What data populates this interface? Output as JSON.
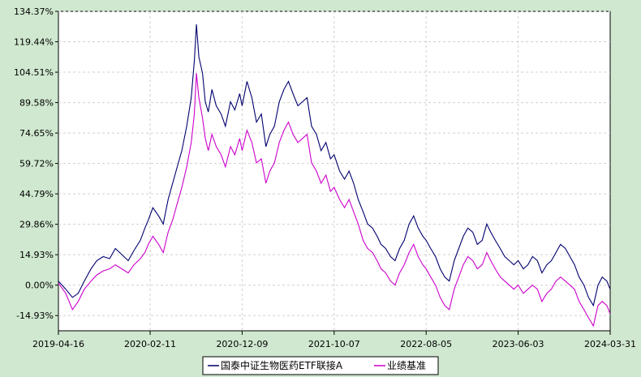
{
  "chart_data": {
    "type": "line",
    "title": "",
    "xlabel": "",
    "ylabel": "",
    "y_unit": "%",
    "ylim": [
      -22.4,
      134.37
    ],
    "y_ticks": [
      "134.37%",
      "119.44%",
      "104.51%",
      "89.58%",
      "74.65%",
      "59.72%",
      "44.79%",
      "29.86%",
      "14.93%",
      "0.00%",
      "-14.93%"
    ],
    "y_tick_values": [
      134.37,
      119.44,
      104.51,
      89.58,
      74.65,
      59.72,
      44.79,
      29.86,
      14.93,
      0.0,
      -14.93
    ],
    "x_ticks": [
      "2019-04-16",
      "2020-02-11",
      "2020-12-09",
      "2021-10-07",
      "2022-08-05",
      "2023-06-03",
      "2024-03-31"
    ],
    "xlim": [
      "2019-04-16",
      "2024-03-31"
    ],
    "grid": true,
    "legend_position": "bottom-center",
    "colors": {
      "background": "#cfe8cf",
      "plot_bg": "#ffffff",
      "grid": "#d0d0d0"
    },
    "series": [
      {
        "name": "国泰中证生物医药ETF联接A",
        "color": "#00006e",
        "points": [
          [
            "2019-04-16",
            2
          ],
          [
            "2019-05-10",
            -2
          ],
          [
            "2019-06-01",
            -6
          ],
          [
            "2019-06-20",
            -4
          ],
          [
            "2019-07-10",
            2
          ],
          [
            "2019-08-01",
            8
          ],
          [
            "2019-08-20",
            12
          ],
          [
            "2019-09-10",
            14
          ],
          [
            "2019-10-01",
            13
          ],
          [
            "2019-10-20",
            18
          ],
          [
            "2019-11-10",
            15
          ],
          [
            "2019-12-01",
            12
          ],
          [
            "2019-12-20",
            17
          ],
          [
            "2020-01-10",
            22
          ],
          [
            "2020-01-25",
            28
          ],
          [
            "2020-02-05",
            32
          ],
          [
            "2020-02-20",
            38
          ],
          [
            "2020-03-10",
            34
          ],
          [
            "2020-03-25",
            30
          ],
          [
            "2020-04-10",
            42
          ],
          [
            "2020-04-25",
            50
          ],
          [
            "2020-05-10",
            58
          ],
          [
            "2020-05-25",
            66
          ],
          [
            "2020-06-10",
            78
          ],
          [
            "2020-06-25",
            92
          ],
          [
            "2020-07-05",
            110
          ],
          [
            "2020-07-12",
            128
          ],
          [
            "2020-07-20",
            112
          ],
          [
            "2020-08-01",
            104
          ],
          [
            "2020-08-10",
            90
          ],
          [
            "2020-08-20",
            85
          ],
          [
            "2020-09-01",
            96
          ],
          [
            "2020-09-15",
            88
          ],
          [
            "2020-10-01",
            84
          ],
          [
            "2020-10-15",
            78
          ],
          [
            "2020-11-01",
            90
          ],
          [
            "2020-11-15",
            86
          ],
          [
            "2020-12-01",
            94
          ],
          [
            "2020-12-09",
            88
          ],
          [
            "2020-12-25",
            100
          ],
          [
            "2021-01-10",
            92
          ],
          [
            "2021-01-25",
            80
          ],
          [
            "2021-02-10",
            84
          ],
          [
            "2021-02-25",
            68
          ],
          [
            "2021-03-10",
            74
          ],
          [
            "2021-03-25",
            78
          ],
          [
            "2021-04-10",
            90
          ],
          [
            "2021-04-25",
            96
          ],
          [
            "2021-05-10",
            100
          ],
          [
            "2021-05-25",
            94
          ],
          [
            "2021-06-10",
            88
          ],
          [
            "2021-06-25",
            90
          ],
          [
            "2021-07-10",
            92
          ],
          [
            "2021-07-25",
            78
          ],
          [
            "2021-08-10",
            74
          ],
          [
            "2021-08-25",
            66
          ],
          [
            "2021-09-10",
            70
          ],
          [
            "2021-09-25",
            62
          ],
          [
            "2021-10-07",
            64
          ],
          [
            "2021-10-25",
            56
          ],
          [
            "2021-11-10",
            52
          ],
          [
            "2021-11-25",
            56
          ],
          [
            "2021-12-10",
            50
          ],
          [
            "2021-12-25",
            42
          ],
          [
            "2022-01-10",
            36
          ],
          [
            "2022-01-25",
            30
          ],
          [
            "2022-02-10",
            28
          ],
          [
            "2022-02-25",
            24
          ],
          [
            "2022-03-10",
            20
          ],
          [
            "2022-03-25",
            18
          ],
          [
            "2022-04-10",
            14
          ],
          [
            "2022-04-25",
            12
          ],
          [
            "2022-05-10",
            18
          ],
          [
            "2022-05-25",
            22
          ],
          [
            "2022-06-10",
            30
          ],
          [
            "2022-06-25",
            34
          ],
          [
            "2022-07-10",
            28
          ],
          [
            "2022-07-25",
            24
          ],
          [
            "2022-08-05",
            22
          ],
          [
            "2022-08-20",
            18
          ],
          [
            "2022-09-05",
            14
          ],
          [
            "2022-09-20",
            8
          ],
          [
            "2022-10-05",
            4
          ],
          [
            "2022-10-20",
            2
          ],
          [
            "2022-11-05",
            12
          ],
          [
            "2022-11-20",
            18
          ],
          [
            "2022-12-05",
            24
          ],
          [
            "2022-12-20",
            28
          ],
          [
            "2023-01-05",
            26
          ],
          [
            "2023-01-20",
            20
          ],
          [
            "2023-02-05",
            22
          ],
          [
            "2023-02-20",
            30
          ],
          [
            "2023-03-05",
            26
          ],
          [
            "2023-03-20",
            22
          ],
          [
            "2023-04-05",
            18
          ],
          [
            "2023-04-20",
            14
          ],
          [
            "2023-05-05",
            12
          ],
          [
            "2023-05-20",
            10
          ],
          [
            "2023-06-03",
            12
          ],
          [
            "2023-06-20",
            8
          ],
          [
            "2023-07-05",
            10
          ],
          [
            "2023-07-20",
            14
          ],
          [
            "2023-08-05",
            12
          ],
          [
            "2023-08-20",
            6
          ],
          [
            "2023-09-05",
            10
          ],
          [
            "2023-09-20",
            12
          ],
          [
            "2023-10-05",
            16
          ],
          [
            "2023-10-20",
            20
          ],
          [
            "2023-11-05",
            18
          ],
          [
            "2023-11-20",
            14
          ],
          [
            "2023-12-05",
            10
          ],
          [
            "2023-12-20",
            4
          ],
          [
            "2024-01-05",
            0
          ],
          [
            "2024-01-20",
            -6
          ],
          [
            "2024-02-05",
            -10
          ],
          [
            "2024-02-20",
            0
          ],
          [
            "2024-03-05",
            4
          ],
          [
            "2024-03-20",
            2
          ],
          [
            "2024-03-31",
            -2
          ]
        ]
      },
      {
        "name": "业绩基准",
        "color": "#cc00cc",
        "points": [
          [
            "2019-04-16",
            1
          ],
          [
            "2019-05-10",
            -4
          ],
          [
            "2019-06-01",
            -12
          ],
          [
            "2019-06-20",
            -8
          ],
          [
            "2019-07-10",
            -2
          ],
          [
            "2019-08-01",
            2
          ],
          [
            "2019-08-20",
            5
          ],
          [
            "2019-09-10",
            7
          ],
          [
            "2019-10-01",
            8
          ],
          [
            "2019-10-20",
            10
          ],
          [
            "2019-11-10",
            8
          ],
          [
            "2019-12-01",
            6
          ],
          [
            "2019-12-20",
            10
          ],
          [
            "2020-01-10",
            13
          ],
          [
            "2020-01-25",
            16
          ],
          [
            "2020-02-05",
            20
          ],
          [
            "2020-02-20",
            24
          ],
          [
            "2020-03-10",
            20
          ],
          [
            "2020-03-25",
            16
          ],
          [
            "2020-04-10",
            26
          ],
          [
            "2020-04-25",
            32
          ],
          [
            "2020-05-10",
            40
          ],
          [
            "2020-05-25",
            48
          ],
          [
            "2020-06-10",
            58
          ],
          [
            "2020-06-25",
            70
          ],
          [
            "2020-07-05",
            84
          ],
          [
            "2020-07-12",
            104
          ],
          [
            "2020-07-20",
            92
          ],
          [
            "2020-08-01",
            82
          ],
          [
            "2020-08-10",
            72
          ],
          [
            "2020-08-20",
            66
          ],
          [
            "2020-09-01",
            74
          ],
          [
            "2020-09-15",
            68
          ],
          [
            "2020-10-01",
            64
          ],
          [
            "2020-10-15",
            58
          ],
          [
            "2020-11-01",
            68
          ],
          [
            "2020-11-15",
            64
          ],
          [
            "2020-12-01",
            72
          ],
          [
            "2020-12-09",
            66
          ],
          [
            "2020-12-25",
            76
          ],
          [
            "2021-01-10",
            70
          ],
          [
            "2021-01-25",
            60
          ],
          [
            "2021-02-10",
            62
          ],
          [
            "2021-02-25",
            50
          ],
          [
            "2021-03-10",
            56
          ],
          [
            "2021-03-25",
            60
          ],
          [
            "2021-04-10",
            70
          ],
          [
            "2021-04-25",
            76
          ],
          [
            "2021-05-10",
            80
          ],
          [
            "2021-05-25",
            74
          ],
          [
            "2021-06-10",
            70
          ],
          [
            "2021-06-25",
            72
          ],
          [
            "2021-07-10",
            74
          ],
          [
            "2021-07-25",
            60
          ],
          [
            "2021-08-10",
            56
          ],
          [
            "2021-08-25",
            50
          ],
          [
            "2021-09-10",
            54
          ],
          [
            "2021-09-25",
            46
          ],
          [
            "2021-10-07",
            48
          ],
          [
            "2021-10-25",
            42
          ],
          [
            "2021-11-10",
            38
          ],
          [
            "2021-11-25",
            42
          ],
          [
            "2021-12-10",
            36
          ],
          [
            "2021-12-25",
            30
          ],
          [
            "2022-01-10",
            22
          ],
          [
            "2022-01-25",
            18
          ],
          [
            "2022-02-10",
            16
          ],
          [
            "2022-02-25",
            12
          ],
          [
            "2022-03-10",
            8
          ],
          [
            "2022-03-25",
            6
          ],
          [
            "2022-04-10",
            2
          ],
          [
            "2022-04-25",
            0
          ],
          [
            "2022-05-10",
            6
          ],
          [
            "2022-05-25",
            10
          ],
          [
            "2022-06-10",
            16
          ],
          [
            "2022-06-25",
            20
          ],
          [
            "2022-07-10",
            14
          ],
          [
            "2022-07-25",
            10
          ],
          [
            "2022-08-05",
            8
          ],
          [
            "2022-08-20",
            4
          ],
          [
            "2022-09-05",
            0
          ],
          [
            "2022-09-20",
            -6
          ],
          [
            "2022-10-05",
            -10
          ],
          [
            "2022-10-20",
            -12
          ],
          [
            "2022-11-05",
            -2
          ],
          [
            "2022-11-20",
            4
          ],
          [
            "2022-12-05",
            10
          ],
          [
            "2022-12-20",
            14
          ],
          [
            "2023-01-05",
            12
          ],
          [
            "2023-01-20",
            8
          ],
          [
            "2023-02-05",
            10
          ],
          [
            "2023-02-20",
            16
          ],
          [
            "2023-03-05",
            12
          ],
          [
            "2023-03-20",
            8
          ],
          [
            "2023-04-05",
            4
          ],
          [
            "2023-04-20",
            2
          ],
          [
            "2023-05-05",
            0
          ],
          [
            "2023-05-20",
            -2
          ],
          [
            "2023-06-03",
            0
          ],
          [
            "2023-06-20",
            -4
          ],
          [
            "2023-07-05",
            -2
          ],
          [
            "2023-07-20",
            0
          ],
          [
            "2023-08-05",
            -2
          ],
          [
            "2023-08-20",
            -8
          ],
          [
            "2023-09-05",
            -4
          ],
          [
            "2023-09-20",
            -2
          ],
          [
            "2023-10-05",
            2
          ],
          [
            "2023-10-20",
            4
          ],
          [
            "2023-11-05",
            2
          ],
          [
            "2023-11-20",
            0
          ],
          [
            "2023-12-05",
            -2
          ],
          [
            "2023-12-20",
            -8
          ],
          [
            "2024-01-05",
            -12
          ],
          [
            "2024-01-20",
            -16
          ],
          [
            "2024-02-05",
            -20
          ],
          [
            "2024-02-20",
            -10
          ],
          [
            "2024-03-05",
            -8
          ],
          [
            "2024-03-20",
            -10
          ],
          [
            "2024-03-31",
            -14
          ]
        ]
      }
    ]
  }
}
